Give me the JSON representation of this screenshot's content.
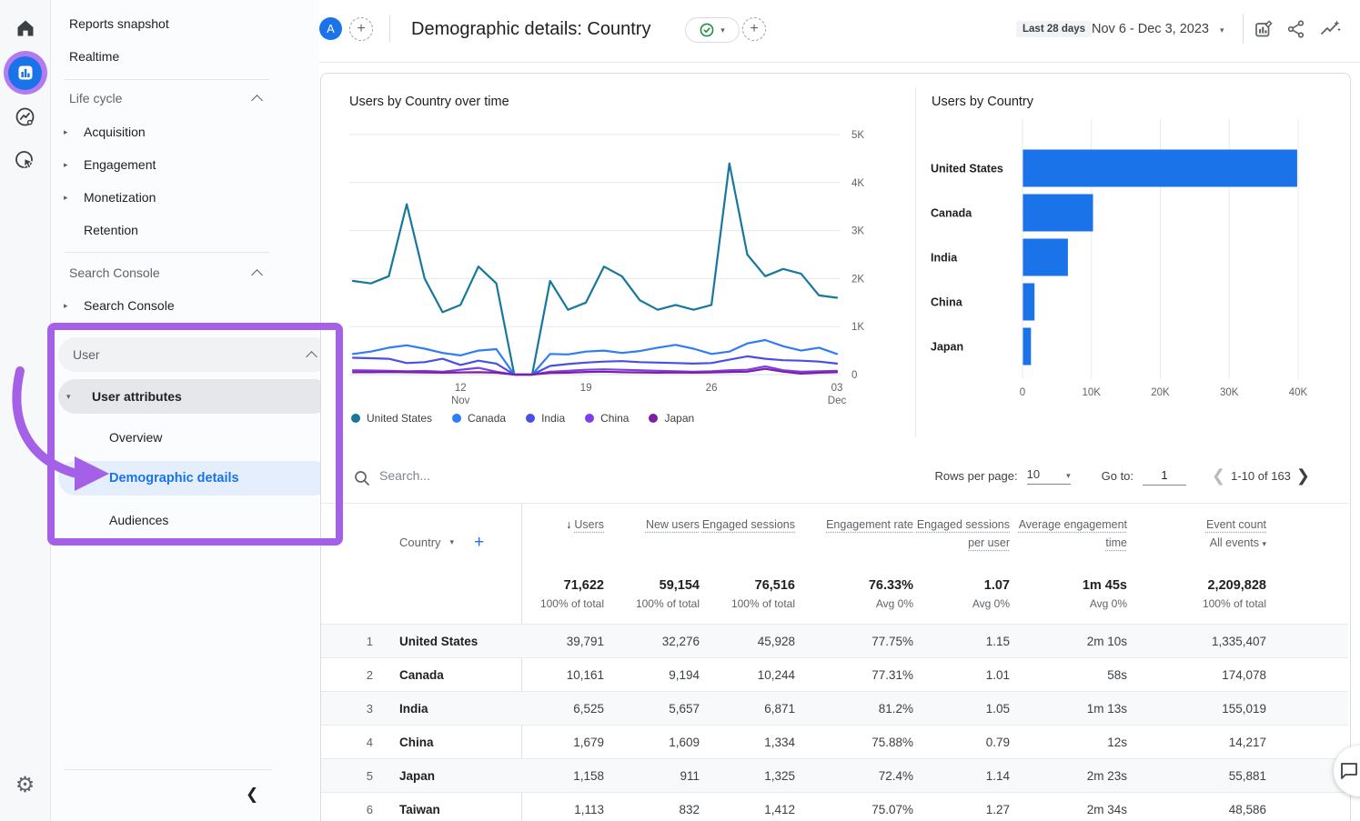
{
  "rail": {
    "icons": [
      "home-icon",
      "reports-icon",
      "explore-icon",
      "advertising-icon",
      "settings-icon"
    ]
  },
  "header": {
    "avatar": "A",
    "title": "Demographic details: Country",
    "date_label": "Last 28 days",
    "date_range": "Nov 6 - Dec 3, 2023",
    "icons": [
      "customize-report-icon",
      "share-icon",
      "insights-icon"
    ],
    "accent_color": "#1a73e8"
  },
  "sidebar": {
    "reports_snapshot": "Reports snapshot",
    "realtime": "Realtime",
    "life_cycle": {
      "title": "Life cycle",
      "items": [
        "Acquisition",
        "Engagement",
        "Monetization",
        "Retention"
      ]
    },
    "search_console": {
      "title": "Search Console",
      "items": [
        "Search Console"
      ]
    },
    "user": {
      "title": "User",
      "group": "User attributes",
      "items": [
        "Overview",
        "Demographic details",
        "Audiences"
      ],
      "selected": "Demographic details"
    },
    "annotation_color": "#a560e8"
  },
  "chart_data": [
    {
      "type": "line",
      "title": "Users by Country over time",
      "x_range": [
        "Nov 6, 2023",
        "Dec 3, 2023"
      ],
      "ylim": [
        0,
        5000
      ],
      "yticks": [
        "0",
        "1K",
        "2K",
        "3K",
        "4K",
        "5K"
      ],
      "xticks": [
        {
          "day": 6,
          "label": "12",
          "sub": "Nov"
        },
        {
          "day": 13,
          "label": "19"
        },
        {
          "day": 20,
          "label": "26"
        },
        {
          "day": 27,
          "label": "03",
          "sub": "Dec"
        }
      ],
      "grid": true,
      "legend_position": "bottom",
      "series": [
        {
          "name": "United States",
          "color": "#17779c",
          "values": [
            1950,
            1900,
            2050,
            3550,
            2000,
            1300,
            1450,
            2250,
            1900,
            0,
            0,
            1950,
            1350,
            1500,
            2250,
            2050,
            1550,
            1350,
            1450,
            1350,
            1450,
            4400,
            2500,
            2050,
            2200,
            2100,
            1650,
            1600
          ]
        },
        {
          "name": "Canada",
          "color": "#2e7df6",
          "values": [
            430,
            480,
            560,
            610,
            540,
            450,
            400,
            500,
            530,
            0,
            0,
            430,
            420,
            480,
            500,
            450,
            490,
            560,
            620,
            540,
            430,
            480,
            650,
            720,
            590,
            500,
            560,
            430
          ]
        },
        {
          "name": "India",
          "color": "#4a4fe4",
          "values": [
            350,
            340,
            330,
            240,
            260,
            330,
            200,
            290,
            230,
            0,
            0,
            180,
            220,
            250,
            270,
            280,
            260,
            250,
            240,
            230,
            240,
            310,
            380,
            330,
            300,
            290,
            270,
            230
          ]
        },
        {
          "name": "China",
          "color": "#7b40e8",
          "values": [
            90,
            85,
            80,
            70,
            75,
            60,
            100,
            140,
            60,
            0,
            0,
            60,
            80,
            100,
            110,
            100,
            90,
            80,
            70,
            60,
            70,
            90,
            100,
            170,
            90,
            60,
            70,
            80
          ]
        },
        {
          "name": "Japan",
          "color": "#7d1fa3",
          "values": [
            50,
            50,
            55,
            50,
            45,
            40,
            45,
            50,
            40,
            0,
            0,
            35,
            40,
            55,
            60,
            50,
            45,
            40,
            45,
            40,
            45,
            55,
            60,
            120,
            60,
            20,
            40,
            50
          ]
        }
      ]
    },
    {
      "type": "bar",
      "title": "Users by Country",
      "orientation": "horizontal",
      "categories": [
        "United States",
        "Canada",
        "India",
        "China",
        "Japan"
      ],
      "values": [
        39791,
        10161,
        6525,
        1679,
        1158
      ],
      "xlim": [
        0,
        45000
      ],
      "xticks": [
        0,
        10000,
        20000,
        30000,
        40000
      ],
      "xtick_labels": [
        "0",
        "10K",
        "20K",
        "30K",
        "40K"
      ],
      "bar_color": "#1a73e8",
      "grid": true
    }
  ],
  "table": {
    "search_placeholder": "Search...",
    "rows_per_page_label": "Rows per page:",
    "rows_per_page_value": "10",
    "goto_label": "Go to:",
    "goto_value": "1",
    "pagination": "1-10 of 163",
    "dimension": "Country",
    "columns": [
      "Users",
      "New users",
      "Engaged sessions",
      "Engagement rate",
      "Engaged sessions per user",
      "Average engagement time",
      "Event count"
    ],
    "event_filter": "All events",
    "totals": [
      {
        "value": "71,622",
        "sub": "100% of total"
      },
      {
        "value": "59,154",
        "sub": "100% of total"
      },
      {
        "value": "76,516",
        "sub": "100% of total"
      },
      {
        "value": "76.33%",
        "sub": "Avg 0%"
      },
      {
        "value": "1.07",
        "sub": "Avg 0%"
      },
      {
        "value": "1m 45s",
        "sub": "Avg 0%"
      },
      {
        "value": "2,209,828",
        "sub": "100% of total"
      }
    ],
    "rows": [
      [
        "1",
        "United States",
        "39,791",
        "32,276",
        "45,928",
        "77.75%",
        "1.15",
        "2m 10s",
        "1,335,407"
      ],
      [
        "2",
        "Canada",
        "10,161",
        "9,194",
        "10,244",
        "77.31%",
        "1.01",
        "58s",
        "174,078"
      ],
      [
        "3",
        "India",
        "6,525",
        "5,657",
        "6,871",
        "81.2%",
        "1.05",
        "1m 13s",
        "155,019"
      ],
      [
        "4",
        "China",
        "1,679",
        "1,609",
        "1,334",
        "75.88%",
        "0.79",
        "12s",
        "14,217"
      ],
      [
        "5",
        "Japan",
        "1,158",
        "911",
        "1,325",
        "72.4%",
        "1.14",
        "2m 23s",
        "55,881"
      ],
      [
        "6",
        "Taiwan",
        "1,113",
        "832",
        "1,412",
        "75.07%",
        "1.27",
        "2m 34s",
        "48,586"
      ]
    ]
  }
}
